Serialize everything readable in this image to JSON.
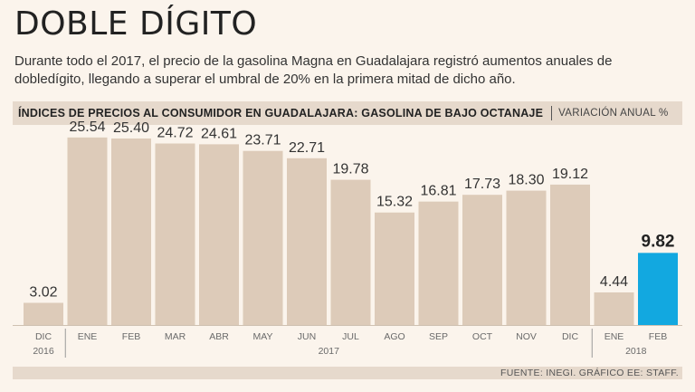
{
  "title": "DOBLE DÍGITO",
  "subtitle": "Durante todo el 2017, el precio de la gasolina Magna en Guadalajara registró aumentos anuales de dobledígito, llegando a superar el umbral de 20% en la primera mitad de dicho año.",
  "header": {
    "title": "ÍNDICES DE PRECIOS AL CONSUMIDOR EN GUADALAJARA: GASOLINA DE BAJO OCTANAJE",
    "unit": "VARIACIÓN ANUAL %"
  },
  "source": "FUENTE: INEGI. GRÁFICO EE: STAFF.",
  "colors": {
    "bar": "#ddcbb9",
    "highlight": "#12a8e0",
    "label": "#333333",
    "axis": "#6a6a6a"
  },
  "chart_data": {
    "type": "bar",
    "categories": [
      "DIC",
      "ENE",
      "FEB",
      "MAR",
      "ABR",
      "MAY",
      "JUN",
      "JUL",
      "AGO",
      "SEP",
      "OCT",
      "NOV",
      "DIC",
      "ENE",
      "FEB"
    ],
    "values": [
      3.02,
      25.54,
      25.4,
      24.72,
      24.61,
      23.71,
      22.71,
      19.78,
      15.32,
      16.81,
      17.73,
      18.3,
      19.12,
      4.44,
      9.82
    ],
    "value_labels": [
      "3.02",
      "25.54",
      "25.40",
      "24.72",
      "24.61",
      "23.71",
      "22.71",
      "19.78",
      "15.32",
      "16.81",
      "17.73",
      "18.30",
      "19.12",
      "4.44",
      "9.82"
    ],
    "highlight_index": 14,
    "year_groups": [
      {
        "label": "2016",
        "start": 0,
        "end": 0
      },
      {
        "label": "2017",
        "start": 1,
        "end": 12
      },
      {
        "label": "2018",
        "start": 13,
        "end": 14
      }
    ],
    "ylim": [
      0,
      27
    ]
  }
}
